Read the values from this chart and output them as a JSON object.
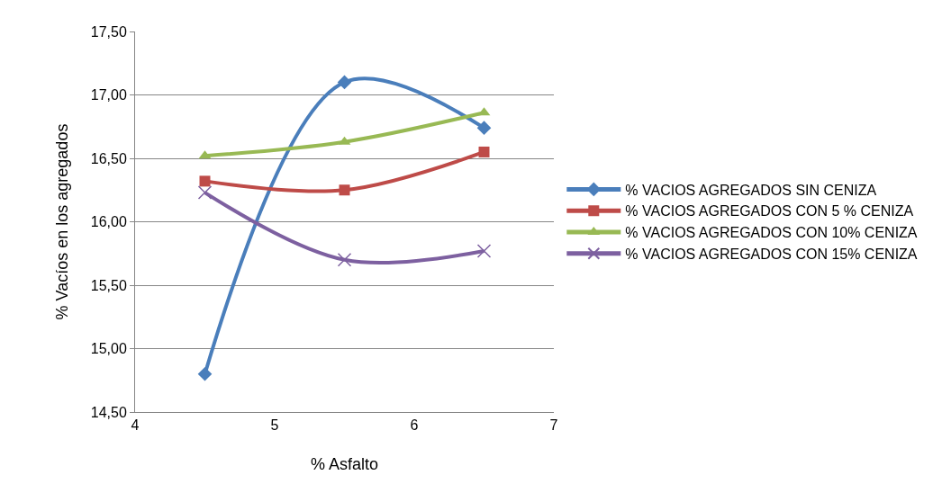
{
  "chart_data": {
    "type": "line",
    "xlabel": "% Asfalto",
    "ylabel": "% Vacíos en los agregados",
    "x": [
      4.5,
      5.5,
      6.5
    ],
    "series": [
      {
        "name": "% VACIOS AGREGADOS SIN CENIZA",
        "color": "#4a7ebb",
        "marker": "diamond",
        "values": [
          14.8,
          17.1,
          16.74
        ]
      },
      {
        "name": "% VACIOS AGREGADOS CON 5 % CENIZA",
        "color": "#be4b48",
        "marker": "square",
        "values": [
          16.32,
          16.25,
          16.55
        ]
      },
      {
        "name": "% VACIOS AGREGADOS CON 10% CENIZA",
        "color": "#98b954",
        "marker": "triangle",
        "values": [
          16.52,
          16.63,
          16.86
        ]
      },
      {
        "name": "% VACIOS AGREGADOS CON 15% CENIZA",
        "color": "#7d60a0",
        "marker": "cross",
        "values": [
          16.23,
          15.7,
          15.77
        ]
      }
    ],
    "xlim": [
      4,
      7
    ],
    "xticks": [
      4,
      5,
      6,
      7
    ],
    "ylim": [
      14.5,
      17.5
    ],
    "yticks": [
      {
        "value": 14.5,
        "label": "14,50"
      },
      {
        "value": 15,
        "label": "15,00"
      },
      {
        "value": 15.5,
        "label": "15,50"
      },
      {
        "value": 16,
        "label": "16,00"
      },
      {
        "value": 16.5,
        "label": "16,50"
      },
      {
        "value": 17,
        "label": "17,00"
      },
      {
        "value": 17.5,
        "label": "17,50"
      }
    ],
    "grid": "y",
    "legend": "right",
    "line_style": "solid"
  }
}
